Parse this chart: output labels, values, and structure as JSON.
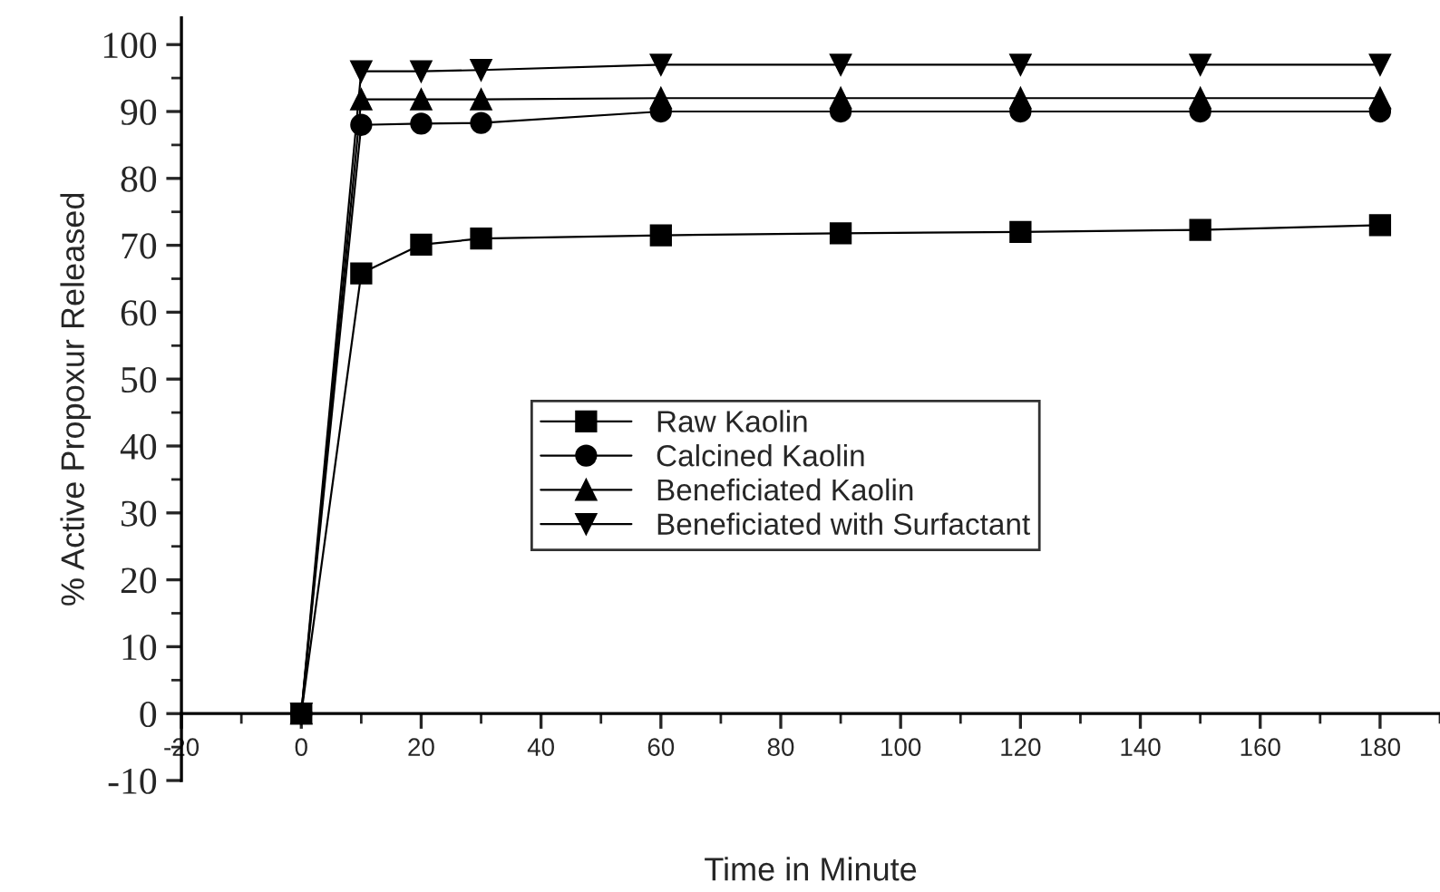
{
  "chart_data": {
    "type": "line",
    "xlabel": "Time in Minute",
    "ylabel": "% Active Propoxur Released",
    "x": [
      0,
      10,
      20,
      30,
      60,
      90,
      120,
      150,
      180
    ],
    "series": [
      {
        "name": "Raw Kaolin",
        "color": "#000000",
        "marker": "square",
        "values": [
          0,
          65.8,
          70.1,
          71,
          71.5,
          71.8,
          72,
          72.3,
          73
        ]
      },
      {
        "name": "Calcined Kaolin",
        "color": "#000000",
        "marker": "circle",
        "values": [
          0,
          88,
          88.2,
          88.3,
          90,
          90,
          90,
          90,
          90
        ]
      },
      {
        "name": "Beneficiated Kaolin",
        "color": "#000000",
        "marker": "triangle",
        "values": [
          0,
          91.8,
          91.8,
          91.8,
          92,
          92,
          92,
          92,
          92
        ]
      },
      {
        "name": "Beneficiated with Surfactant",
        "color": "#000000",
        "marker": "triangle_down",
        "values": [
          0,
          96,
          96,
          96.2,
          97,
          97,
          97,
          97,
          97
        ]
      }
    ],
    "xlim": [
      -20,
      190
    ],
    "xticks": [
      -20,
      0,
      20,
      40,
      60,
      80,
      100,
      120,
      140,
      160,
      180
    ],
    "ylim": [
      -10,
      104
    ],
    "yticks": [
      -10,
      0,
      10,
      20,
      30,
      40,
      50,
      60,
      70,
      80,
      90,
      100
    ],
    "grid": false,
    "legend": "center",
    "line_style": "solid"
  }
}
